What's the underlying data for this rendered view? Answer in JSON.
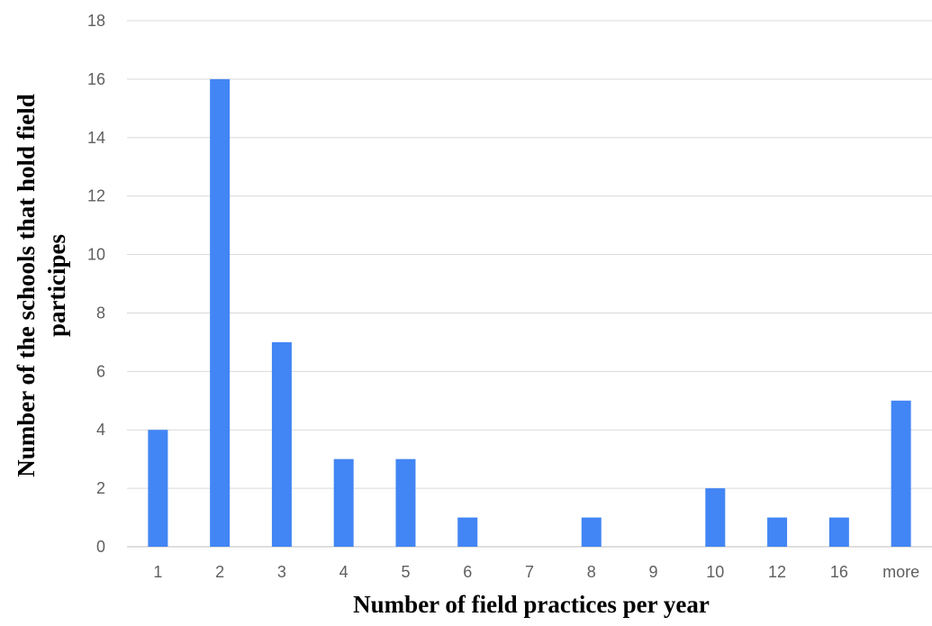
{
  "chart_data": {
    "type": "bar",
    "title": "",
    "xlabel": "Number of field practices per year",
    "ylabel_lines": [
      "Number of the schools that hold field",
      "participes"
    ],
    "categories": [
      "1",
      "2",
      "3",
      "4",
      "5",
      "6",
      "7",
      "8",
      "9",
      "10",
      "12",
      "16",
      "more"
    ],
    "values": [
      4,
      16,
      7,
      3,
      3,
      1,
      0,
      1,
      0,
      2,
      1,
      1,
      5
    ],
    "ylim": [
      0,
      18
    ],
    "yticks": [
      0,
      2,
      4,
      6,
      8,
      10,
      12,
      14,
      16,
      18
    ],
    "grid": true,
    "bar_color": "#4285f4",
    "legend": "none"
  }
}
